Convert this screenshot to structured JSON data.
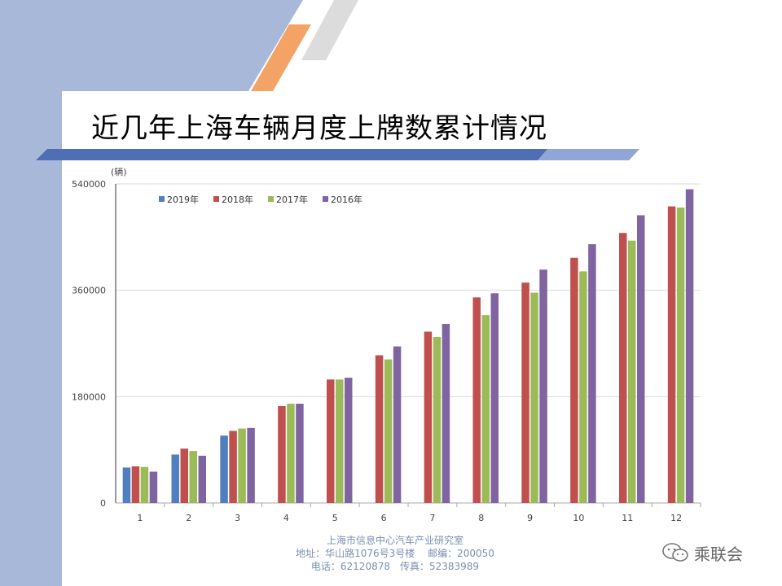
{
  "slide": {
    "title": "近几年上海车辆月度上牌数累计情况",
    "footer": {
      "line1": "上海市信息中心汽车产业研究室",
      "line2": "地址：华山路1076号3号楼　 邮编：200050",
      "line3": "电话：62120878　传真：52383989"
    },
    "watermark": "乘联会",
    "watermark_icon": "wechat-icon",
    "colors": {
      "accent_blue": "#4f6fb5",
      "accent_orange": "#f4a366",
      "panel_blue": "#a8b8d8"
    }
  },
  "chart_data": {
    "type": "bar",
    "ylabel": "(辆)",
    "ylim": [
      0,
      540000
    ],
    "yticks": [
      "540000",
      "360000",
      "180000",
      "0"
    ],
    "categories": [
      "1",
      "2",
      "3",
      "4",
      "5",
      "6",
      "7",
      "8",
      "9",
      "10",
      "11",
      "12"
    ],
    "grid": true,
    "legend_position": "top-left",
    "series": [
      {
        "name": "2019年",
        "color": "#4f7fbf",
        "values": [
          60000,
          82000,
          114000,
          null,
          null,
          null,
          null,
          null,
          null,
          null,
          null,
          null
        ]
      },
      {
        "name": "2018年",
        "color": "#c0504d",
        "values": [
          62000,
          92000,
          122000,
          164000,
          209000,
          250000,
          290000,
          348000,
          373000,
          415000,
          457000,
          502000
        ]
      },
      {
        "name": "2017年",
        "color": "#9bbb59",
        "values": [
          61000,
          88000,
          126000,
          168000,
          209000,
          243000,
          281000,
          318000,
          356000,
          392000,
          444000,
          500000
        ]
      },
      {
        "name": "2016年",
        "color": "#8064a2",
        "values": [
          53000,
          80000,
          127000,
          168000,
          212000,
          265000,
          303000,
          355000,
          395000,
          438000,
          487000,
          531000
        ]
      }
    ]
  }
}
